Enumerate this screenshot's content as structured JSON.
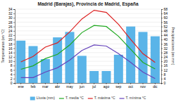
{
  "chart_data": {
    "type": "bar",
    "title": "Madrid (Barajas), Provincia de Madrid, España",
    "categories": [
      "ene",
      "feb",
      "mar",
      "abr",
      "may",
      "jun",
      "jul",
      "ago",
      "sep",
      "oct",
      "nov",
      "dic"
    ],
    "series": [
      {
        "name": "Lluvia (mm)",
        "type": "bar",
        "axis": "y2",
        "color": "#5ab4e8",
        "values": [
          39,
          34,
          22,
          42,
          47,
          25,
          11,
          11,
          26,
          52,
          47,
          43
        ]
      },
      {
        "name": "T. media °C",
        "type": "line",
        "color": "#22aa22",
        "values": [
          6.3,
          7.9,
          11.2,
          13.2,
          17.5,
          23.2,
          26.5,
          26.0,
          21.5,
          15.5,
          9.5,
          6.5
        ]
      },
      {
        "name": "T. máxima °C",
        "type": "line",
        "color": "#dd2222",
        "values": [
          9.7,
          12.2,
          16.5,
          18.5,
          23.5,
          29.5,
          33.5,
          32.5,
          27.0,
          20.0,
          13.5,
          9.5
        ]
      },
      {
        "name": "T. mínima °C",
        "type": "line",
        "color": "#6644bb",
        "values": [
          2.5,
          2.5,
          5.0,
          7.0,
          10.5,
          15.0,
          17.5,
          17.0,
          13.5,
          9.5,
          5.0,
          2.0
        ]
      }
    ],
    "ylim": [
      0,
      34
    ],
    "yticks": [
      0,
      2,
      4,
      6,
      8,
      10,
      12,
      14,
      16,
      18,
      20,
      22,
      24,
      26,
      28,
      30,
      32,
      34
    ],
    "y2lim": [
      0,
      68
    ],
    "y2ticks": [
      0,
      4,
      8,
      12,
      16,
      20,
      24,
      28,
      32,
      36,
      40,
      44,
      48,
      52,
      56,
      60,
      64,
      68
    ],
    "ylabel": "Temperaturas (en °C)",
    "y2label": "Precipitaciones (en mm)",
    "grid": true,
    "legend": "bottom"
  }
}
